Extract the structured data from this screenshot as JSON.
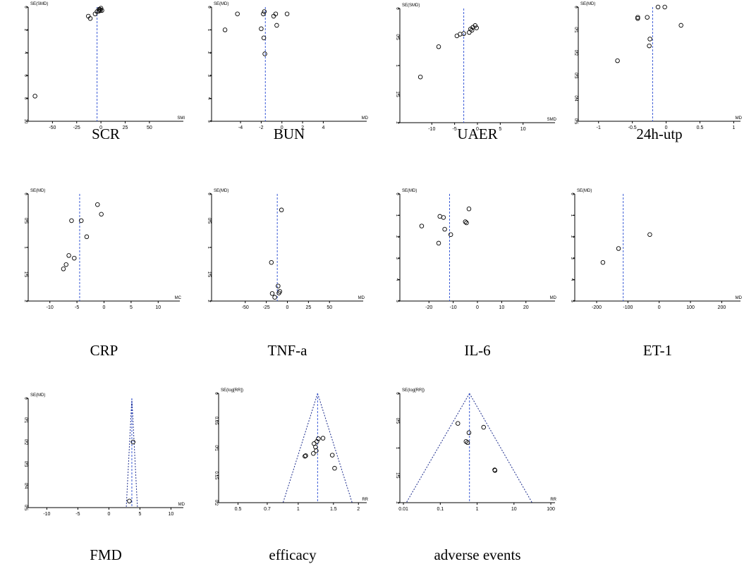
{
  "chart_data": [
    {
      "id": "scr",
      "type": "scatter",
      "title": "SCR",
      "ylabel": "SE(SMD)",
      "xlabel": "SMI",
      "xlim": [
        -75,
        85
      ],
      "ylim": [
        0,
        10
      ],
      "xticks": [
        -50,
        -25,
        0,
        25,
        50
      ],
      "yticks": [
        0,
        2,
        4,
        6,
        8,
        10
      ],
      "xtick_labels": [
        "-50",
        "-25",
        "0",
        "25",
        "50"
      ],
      "ytick_labels": [
        "0",
        "2",
        "4",
        "6",
        "8",
        "10"
      ],
      "summary": -4,
      "funnel": null,
      "points": [
        [
          -68,
          7.8
        ],
        [
          -13,
          0.8
        ],
        [
          -11,
          1.0
        ],
        [
          -6,
          0.6
        ],
        [
          -4,
          0.4
        ],
        [
          -2,
          0.35
        ],
        [
          -1,
          0.2
        ],
        [
          0,
          0.1
        ],
        [
          -0.5,
          0.3
        ],
        [
          1,
          0.3
        ],
        [
          -2,
          0.2
        ]
      ]
    },
    {
      "id": "bun",
      "type": "scatter",
      "title": "BUN",
      "ylabel": "SE(MD)",
      "xlabel": "MD",
      "xlim": [
        -6.8,
        8.2
      ],
      "ylim": [
        0,
        5
      ],
      "xticks": [
        -4,
        -2,
        0,
        2,
        4
      ],
      "yticks": [
        0,
        1,
        2,
        3,
        4,
        5
      ],
      "xtick_labels": [
        "-4",
        "-2",
        "0",
        "2",
        "4"
      ],
      "ytick_labels": [
        "0",
        "1",
        "2",
        "3",
        "4",
        "5"
      ],
      "summary": -1.6,
      "funnel": null,
      "points": [
        [
          -5.5,
          1.0
        ],
        [
          -4.3,
          0.3
        ],
        [
          -2.0,
          0.95
        ],
        [
          -1.8,
          0.3
        ],
        [
          -1.7,
          0.2
        ],
        [
          -1.75,
          1.35
        ],
        [
          -1.65,
          2.05
        ],
        [
          -0.8,
          0.4
        ],
        [
          -0.6,
          0.3
        ],
        [
          -0.5,
          0.8
        ],
        [
          0.5,
          0.3
        ]
      ]
    },
    {
      "id": "uaer",
      "type": "scatter",
      "title": "UAER",
      "ylabel": "SE(SMD)",
      "xlabel": "SMD",
      "xlim": [
        -17,
        17
      ],
      "ylim": [
        0,
        2
      ],
      "xticks": [
        -10,
        -5,
        0,
        5,
        10
      ],
      "yticks": [
        0,
        0.5,
        1,
        1.5,
        2
      ],
      "xtick_labels": [
        "-10",
        "-5",
        "0",
        "5",
        "10"
      ],
      "ytick_labels": [
        "0",
        "0.5",
        "1",
        "1.5",
        "2"
      ],
      "summary": -3,
      "funnel": null,
      "points": [
        [
          -12.5,
          1.2
        ],
        [
          -8.5,
          0.67
        ],
        [
          -4.5,
          0.48
        ],
        [
          -3.8,
          0.45
        ],
        [
          -3.0,
          0.44
        ],
        [
          -1.8,
          0.42
        ],
        [
          -1.5,
          0.36
        ],
        [
          -1.0,
          0.33
        ],
        [
          -0.5,
          0.3
        ],
        [
          -0.2,
          0.34
        ],
        [
          -1.2,
          0.38
        ]
      ]
    },
    {
      "id": "utp24",
      "type": "scatter",
      "title": "24h-utp",
      "ylabel": "SE(MD)",
      "xlabel": "MD",
      "xlim": [
        -1.3,
        1.1
      ],
      "ylim": [
        0,
        0.5
      ],
      "xticks": [
        -1,
        -0.5,
        0,
        0.5,
        1
      ],
      "yticks": [
        0,
        0.1,
        0.2,
        0.3,
        0.4,
        0.5
      ],
      "xtick_labels": [
        "-1",
        "-0.5",
        "0",
        "0.5",
        "1"
      ],
      "ytick_labels": [
        "0",
        "0.1",
        "0.2",
        "0.3",
        "0.4",
        "0.5"
      ],
      "summary": -0.2,
      "funnel": null,
      "points": [
        [
          -0.72,
          0.235
        ],
        [
          -0.42,
          0.05
        ],
        [
          -0.42,
          0.045
        ],
        [
          -0.28,
          0.045
        ],
        [
          -0.25,
          0.17
        ],
        [
          -0.24,
          0.14
        ],
        [
          -0.12,
          0.0
        ],
        [
          -0.02,
          0.0
        ],
        [
          0.22,
          0.08
        ]
      ]
    },
    {
      "id": "crp",
      "type": "scatter",
      "title": "CRP",
      "ylabel": "SE(MD)",
      "xlabel": "MC",
      "xlim": [
        -14,
        14
      ],
      "ylim": [
        0,
        2
      ],
      "xticks": [
        -10,
        -5,
        0,
        5,
        10
      ],
      "yticks": [
        0,
        0.5,
        1,
        1.5,
        2
      ],
      "xtick_labels": [
        "-10",
        "-5",
        "0",
        "5",
        "10"
      ],
      "ytick_labels": [
        "0",
        "0.5",
        "1",
        "1.5",
        "2"
      ],
      "summary": -4.5,
      "funnel": null,
      "points": [
        [
          -7.5,
          1.4
        ],
        [
          -7.0,
          1.32
        ],
        [
          -6.5,
          1.15
        ],
        [
          -6.0,
          0.5
        ],
        [
          -5.5,
          1.2
        ],
        [
          -4.2,
          0.5
        ],
        [
          -3.2,
          0.8
        ],
        [
          -1.2,
          0.2
        ],
        [
          -0.5,
          0.38
        ]
      ]
    },
    {
      "id": "tnf",
      "type": "scatter",
      "title": "TNF-a",
      "ylabel": "SE(MD)",
      "xlabel": "MD",
      "xlim": [
        -90,
        90
      ],
      "ylim": [
        0,
        2
      ],
      "xticks": [
        -50,
        -25,
        0,
        25,
        50
      ],
      "yticks": [
        0,
        0.5,
        1,
        1.5,
        2
      ],
      "xtick_labels": [
        "-50",
        "-25",
        "0",
        "25",
        "50"
      ],
      "ytick_labels": [
        "0",
        "0.5",
        "1",
        "1.5",
        "2"
      ],
      "summary": -12,
      "funnel": null,
      "points": [
        [
          -19,
          1.28
        ],
        [
          -18,
          1.86
        ],
        [
          -15,
          1.93
        ],
        [
          -11,
          1.72
        ],
        [
          -10,
          1.85
        ],
        [
          -9,
          1.82
        ],
        [
          -7,
          0.3
        ]
      ]
    },
    {
      "id": "il6",
      "type": "scatter",
      "title": "IL-6",
      "ylabel": "SE(MD)",
      "xlabel": "MD",
      "xlim": [
        -32,
        32
      ],
      "ylim": [
        0,
        5
      ],
      "xticks": [
        -20,
        -10,
        0,
        10,
        20
      ],
      "yticks": [
        0,
        1,
        2,
        3,
        4,
        5
      ],
      "xtick_labels": [
        "-20",
        "-10",
        "0",
        "10",
        "20"
      ],
      "ytick_labels": [
        "0",
        "1",
        "2",
        "3",
        "4",
        "5"
      ],
      "summary": -11.5,
      "funnel": null,
      "points": [
        [
          -23,
          1.5
        ],
        [
          -16,
          2.3
        ],
        [
          -15.5,
          1.05
        ],
        [
          -14,
          1.1
        ],
        [
          -13.5,
          1.65
        ],
        [
          -11,
          1.9
        ],
        [
          -5,
          1.3
        ],
        [
          -4.5,
          1.35
        ],
        [
          -3.5,
          0.7
        ]
      ]
    },
    {
      "id": "et1",
      "type": "scatter",
      "title": "ET-1",
      "ylabel": "SE(MD)",
      "xlabel": "MD",
      "xlim": [
        -270,
        260
      ],
      "ylim": [
        0,
        5
      ],
      "xticks": [
        -200,
        -100,
        0,
        100,
        200
      ],
      "yticks": [
        0,
        1,
        2,
        3,
        4,
        5
      ],
      "xtick_labels": [
        "-200",
        "-100",
        "0",
        "100",
        "200"
      ],
      "ytick_labels": [
        "0",
        "1",
        "2",
        "3",
        "4",
        "5"
      ],
      "summary": -115,
      "funnel": null,
      "points": [
        [
          -180,
          3.2
        ],
        [
          -130,
          2.55
        ],
        [
          -30,
          1.9
        ]
      ]
    },
    {
      "id": "fmd",
      "type": "scatter",
      "title": "FMD",
      "ylabel": "SE(MD)",
      "xlabel": "MD",
      "xlim": [
        -13,
        12
      ],
      "ylim": [
        0,
        0.5
      ],
      "xticks": [
        -10,
        -5,
        0,
        5,
        10
      ],
      "yticks": [
        0,
        0.1,
        0.2,
        0.3,
        0.4,
        0.5
      ],
      "xtick_labels": [
        "-10",
        "-5",
        "0",
        "5",
        "10"
      ],
      "ytick_labels": [
        "0",
        "0.1",
        "0.2",
        "0.3",
        "0.4",
        "0.5"
      ],
      "summary": 3.7,
      "funnel": [
        3.7,
        0.5,
        2.8,
        4.6
      ],
      "points": [
        [
          3.3,
          0.47
        ],
        [
          3.9,
          0.2
        ]
      ]
    },
    {
      "id": "efficacy",
      "type": "scatter",
      "title": "efficacy",
      "ylabel": "SE(log[RR])",
      "xlabel": "RR",
      "log_x": true,
      "xlim": [
        0.4,
        2.2
      ],
      "ylim": [
        0,
        0.2
      ],
      "xticks": [
        0.5,
        0.7,
        1,
        1.5,
        2
      ],
      "yticks": [
        0,
        0.05,
        0.1,
        0.15,
        0.2
      ],
      "xtick_labels": [
        "0.5",
        "0.7",
        "1",
        "1.5",
        "2"
      ],
      "ytick_labels": [
        "0",
        "0.05",
        "0.1",
        "0.15",
        "0.2"
      ],
      "summary": 1.25,
      "funnel": [
        1.25,
        0.2,
        0.84,
        1.86
      ],
      "points": [
        [
          1.08,
          0.115
        ],
        [
          1.09,
          0.114
        ],
        [
          1.19,
          0.11
        ],
        [
          1.2,
          0.092
        ],
        [
          1.22,
          0.098
        ],
        [
          1.23,
          0.105
        ],
        [
          1.24,
          0.088
        ],
        [
          1.26,
          0.083
        ],
        [
          1.33,
          0.082
        ],
        [
          1.48,
          0.113
        ],
        [
          1.52,
          0.137
        ]
      ]
    },
    {
      "id": "adverse",
      "type": "scatter",
      "title": "adverse events",
      "ylabel": "SE(log[RR])",
      "xlabel": "RR",
      "log_x": true,
      "xlim": [
        0.008,
        130
      ],
      "ylim": [
        0,
        2
      ],
      "xticks": [
        0.01,
        0.1,
        1,
        10,
        100
      ],
      "yticks": [
        0,
        0.5,
        1,
        1.5,
        2
      ],
      "xtick_labels": [
        "0.01",
        "0.1",
        "1",
        "10",
        "100"
      ],
      "ytick_labels": [
        "0",
        "0.5",
        "1",
        "1.5",
        "2"
      ],
      "summary": 0.62,
      "funnel": [
        0.62,
        2.0,
        0.012,
        31
      ],
      "points": [
        [
          0.3,
          0.55
        ],
        [
          0.5,
          0.88
        ],
        [
          0.55,
          0.9
        ],
        [
          0.6,
          0.72
        ],
        [
          1.5,
          0.62
        ],
        [
          3.0,
          1.4
        ],
        [
          3.05,
          1.41
        ]
      ]
    }
  ]
}
